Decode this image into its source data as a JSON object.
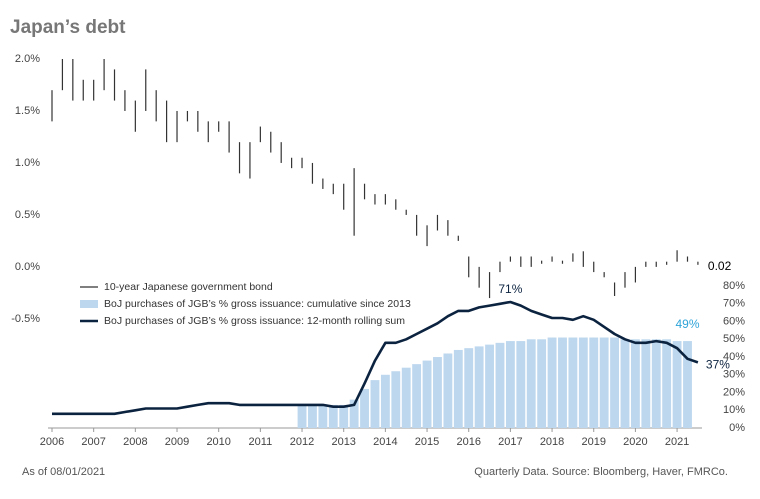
{
  "chart_data": {
    "type": "combo",
    "title": "Japan’s debt",
    "as_of": "As of 08/01/2021",
    "source": "Quarterly Data. Source: Bloomberg, Haver, FMRCo.",
    "xlim": [
      2006,
      2021.55
    ],
    "xticks": [
      2006,
      2007,
      2008,
      2009,
      2010,
      2011,
      2012,
      2013,
      2014,
      2015,
      2016,
      2017,
      2018,
      2019,
      2020,
      2021
    ],
    "ylim": [
      -1.55,
      2.0
    ],
    "yticks": [
      {
        "value": -0.5,
        "label": "-0.5%"
      },
      {
        "value": 0,
        "label": "0.0%"
      },
      {
        "value": 0.5,
        "label": "0.5%"
      },
      {
        "value": 1.0,
        "label": "1.0%"
      },
      {
        "value": 1.5,
        "label": "1.5%"
      },
      {
        "value": 2.0,
        "label": "2.0%"
      }
    ],
    "y2lim": [
      0,
      208
    ],
    "y2ticks": [
      {
        "value": 0,
        "label": "0%"
      },
      {
        "value": 10,
        "label": "10%"
      },
      {
        "value": 20,
        "label": "20%"
      },
      {
        "value": 30,
        "label": "30%"
      },
      {
        "value": 40,
        "label": "40%"
      },
      {
        "value": 50,
        "label": "50%"
      },
      {
        "value": 60,
        "label": "60%"
      },
      {
        "value": 70,
        "label": "70%"
      },
      {
        "value": 80,
        "label": "80%"
      }
    ],
    "series": [
      {
        "name": "10-year Japanese government bond",
        "type": "range",
        "color": "#333333",
        "x": [
          2006,
          2006.25,
          2006.5,
          2006.75,
          2007,
          2007.25,
          2007.5,
          2007.75,
          2008,
          2008.25,
          2008.5,
          2008.75,
          2009,
          2009.25,
          2009.5,
          2009.75,
          2010,
          2010.25,
          2010.5,
          2010.75,
          2011,
          2011.25,
          2011.5,
          2011.75,
          2012,
          2012.25,
          2012.5,
          2012.75,
          2013,
          2013.25,
          2013.5,
          2013.75,
          2014,
          2014.25,
          2014.5,
          2014.75,
          2015,
          2015.25,
          2015.5,
          2015.75,
          2016,
          2016.25,
          2016.5,
          2016.75,
          2017,
          2017.25,
          2017.5,
          2017.75,
          2018,
          2018.25,
          2018.5,
          2018.75,
          2019,
          2019.25,
          2019.5,
          2019.75,
          2020,
          2020.25,
          2020.5,
          2020.75,
          2021,
          2021.25,
          2021.5
        ],
        "low": [
          1.4,
          1.7,
          1.6,
          1.6,
          1.6,
          1.7,
          1.6,
          1.5,
          1.3,
          1.5,
          1.4,
          1.2,
          1.2,
          1.4,
          1.3,
          1.2,
          1.3,
          1.1,
          0.9,
          0.85,
          1.2,
          1.1,
          1.0,
          0.95,
          0.95,
          0.8,
          0.75,
          0.7,
          0.55,
          0.3,
          0.65,
          0.6,
          0.6,
          0.55,
          0.5,
          0.3,
          0.2,
          0.35,
          0.3,
          0.25,
          -0.1,
          -0.2,
          -0.3,
          -0.05,
          0.05,
          0.0,
          0.0,
          0.03,
          0.05,
          0.03,
          0.05,
          0.0,
          -0.05,
          -0.1,
          -0.28,
          -0.2,
          -0.15,
          0.0,
          0.0,
          0.02,
          0.05,
          0.05,
          0.02
        ],
        "high": [
          1.7,
          2.0,
          2.0,
          1.8,
          1.8,
          2.0,
          1.9,
          1.7,
          1.6,
          1.9,
          1.7,
          1.6,
          1.5,
          1.5,
          1.5,
          1.4,
          1.4,
          1.4,
          1.2,
          1.2,
          1.35,
          1.3,
          1.2,
          1.05,
          1.05,
          1.0,
          0.85,
          0.8,
          0.8,
          0.95,
          0.8,
          0.7,
          0.7,
          0.65,
          0.55,
          0.5,
          0.4,
          0.5,
          0.45,
          0.3,
          0.1,
          0.0,
          -0.05,
          0.05,
          0.1,
          0.1,
          0.1,
          0.06,
          0.1,
          0.06,
          0.13,
          0.15,
          0.05,
          -0.05,
          -0.15,
          -0.05,
          0.0,
          0.05,
          0.05,
          0.05,
          0.16,
          0.1,
          0.05
        ]
      },
      {
        "name": "BoJ purchases of JGB’s % gross issuance: cumulative since 2013",
        "type": "bar",
        "axis": "y2",
        "color": "#bdd7ee",
        "x": [
          2012,
          2012.25,
          2012.5,
          2012.75,
          2013,
          2013.25,
          2013.5,
          2013.75,
          2014,
          2014.25,
          2014.5,
          2014.75,
          2015,
          2015.25,
          2015.5,
          2015.75,
          2016,
          2016.25,
          2016.5,
          2016.75,
          2017,
          2017.25,
          2017.5,
          2017.75,
          2018,
          2018.25,
          2018.5,
          2018.75,
          2019,
          2019.25,
          2019.5,
          2019.75,
          2020,
          2020.25,
          2020.5,
          2020.75,
          2021,
          2021.25
        ],
        "values": [
          13,
          13,
          13,
          13,
          13,
          16,
          22,
          27,
          30,
          32,
          34,
          36,
          38,
          40,
          42,
          44,
          45,
          46,
          47,
          48,
          49,
          49,
          50,
          50,
          51,
          51,
          51,
          51,
          51,
          51,
          51,
          50,
          50,
          50,
          50,
          50,
          49,
          49
        ]
      },
      {
        "name": "BoJ purchases of JGB’s % gross issuance: 12-month rolling sum",
        "type": "line",
        "axis": "y2",
        "color": "#0c2340",
        "x": [
          2006,
          2006.25,
          2006.5,
          2006.75,
          2007,
          2007.25,
          2007.5,
          2007.75,
          2008,
          2008.25,
          2008.5,
          2008.75,
          2009,
          2009.25,
          2009.5,
          2009.75,
          2010,
          2010.25,
          2010.5,
          2010.75,
          2011,
          2011.25,
          2011.5,
          2011.75,
          2012,
          2012.25,
          2012.5,
          2012.75,
          2013,
          2013.25,
          2013.5,
          2013.75,
          2014,
          2014.25,
          2014.5,
          2014.75,
          2015,
          2015.25,
          2015.5,
          2015.75,
          2016,
          2016.25,
          2016.5,
          2016.75,
          2017,
          2017.25,
          2017.5,
          2017.75,
          2018,
          2018.25,
          2018.5,
          2018.75,
          2019,
          2019.25,
          2019.5,
          2019.75,
          2020,
          2020.25,
          2020.5,
          2020.75,
          2021,
          2021.25,
          2021.5
        ],
        "values": [
          8,
          8,
          8,
          8,
          8,
          8,
          8,
          9,
          10,
          11,
          11,
          11,
          11,
          12,
          13,
          14,
          14,
          14,
          13,
          13,
          13,
          13,
          13,
          13,
          13,
          13,
          13,
          12,
          12,
          13,
          25,
          38,
          48,
          48,
          50,
          53,
          56,
          59,
          63,
          66,
          66,
          68,
          69,
          70,
          71,
          69,
          66,
          64,
          62,
          62,
          61,
          63,
          61,
          57,
          53,
          50,
          48,
          48,
          49,
          48,
          45,
          39,
          37
        ]
      }
    ],
    "annotations": [
      {
        "x": 2021.5,
        "value": 0.02,
        "label": "0.02",
        "color": "#000000"
      },
      {
        "x": 2017,
        "value": 71,
        "label": "71%",
        "axis": "y2",
        "color": "#0c2340"
      },
      {
        "x": 2021.25,
        "value": 49,
        "label": "49%",
        "axis": "y2",
        "color": "#2fa4d9"
      },
      {
        "x": 2021.5,
        "value": 37,
        "label": "37%",
        "axis": "y2",
        "color": "#0c2340"
      }
    ]
  }
}
